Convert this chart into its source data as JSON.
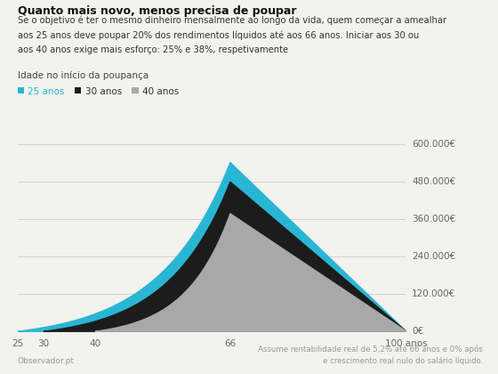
{
  "title": "Quanto mais novo, menos precisa de poupar",
  "subtitle_lines": [
    "Se o objetivo é ter o mesmo dinheiro mensalmente ao longo da vida, quem começar a amealhar",
    "aos 25 anos deve poupar 20% dos rendimentos líquidos até aos 66 anos. Iniciar aos 30 ou",
    "aos 40 anos exige mais esforço: 25% e 38%, respetivamente"
  ],
  "legend_label": "Idade no início da poupança",
  "legend_items": [
    "25 anos",
    "30 anos",
    "40 anos"
  ],
  "legend_colors": [
    "#29b6d4",
    "#1c1c1c",
    "#a8a8a8"
  ],
  "footnote_left": "Observador.pt",
  "footnote_right": "Assume rentabilidade real de 5,2% até 66 anos e 0% após\ne crescimento real nulo do salário líquido.",
  "bg_color": "#f2f2ee",
  "xlim": [
    25,
    100
  ],
  "ylim": [
    0,
    600000
  ],
  "yticks": [
    0,
    120000,
    240000,
    360000,
    480000,
    600000
  ],
  "ytick_labels": [
    "0€",
    "120.000€",
    "240.000€",
    "360.000€",
    "480.000€",
    "600.000€"
  ],
  "xticks": [
    25,
    30,
    40,
    66,
    100
  ],
  "xtick_labels": [
    "25",
    "30",
    "40",
    "66",
    "100 anos"
  ],
  "peak_age": 66,
  "peak_25": 542000,
  "peak_30": 480000,
  "peak_40": 378000,
  "start_25": 25,
  "start_30": 30,
  "start_40": 40,
  "end_age": 100,
  "color_25": "#29b6d4",
  "color_30": "#1c1c1c",
  "color_40": "#a8a8a8",
  "grid_color": "#d0d0cc",
  "exp_factor": 3.0
}
